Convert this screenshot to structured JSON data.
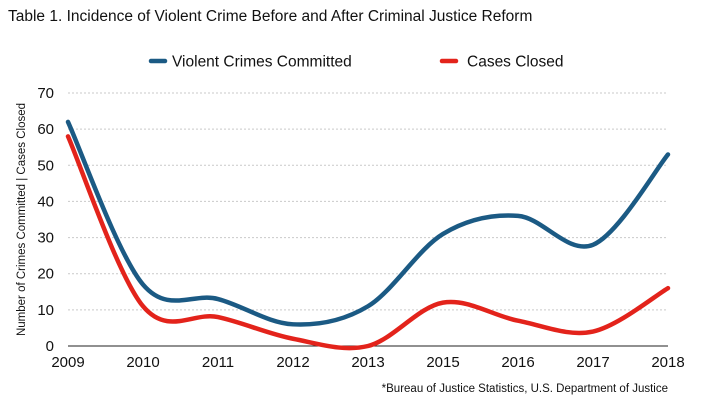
{
  "chart_data": {
    "type": "line",
    "title": "Table 1.  Incidence of Violent Crime Before and After Criminal Justice Reform",
    "xlabel": "",
    "ylabel": "Number of Crimes Committed | Cases Closed",
    "categories": [
      "2009",
      "2010",
      "2011",
      "2012",
      "2013",
      "2015",
      "2016",
      "2017",
      "2018"
    ],
    "ylim": [
      0,
      70
    ],
    "yticks": [
      0,
      10,
      20,
      30,
      40,
      50,
      60,
      70
    ],
    "grid": true,
    "legend_position": "top-center",
    "series": [
      {
        "name": "Violent Crimes Committed",
        "color": "#1b5a84",
        "values": [
          62,
          17,
          13,
          6,
          11,
          31,
          36,
          28,
          53
        ]
      },
      {
        "name": "Cases Closed",
        "color": "#e3231b",
        "values": [
          58,
          11,
          8,
          2,
          0,
          12,
          7,
          4,
          16
        ]
      }
    ],
    "source_note": "*Bureau of Justice Statistics, U.S. Department of Justice"
  }
}
